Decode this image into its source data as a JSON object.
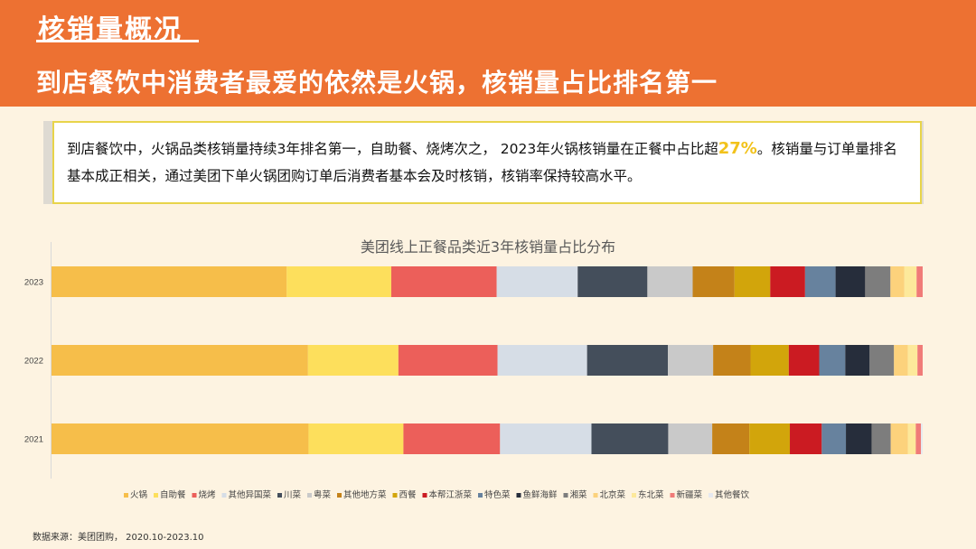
{
  "header": {
    "title": "核销量概况",
    "subtitle": "到店餐饮中消费者最爱的依然是火锅，核销量占比排名第一"
  },
  "callout": {
    "text_before": "到店餐饮中，火锅品类核销量持续3年排名第一，自助餐、烧烤次之， 2023年火锅核销量在正餐中占比超",
    "highlight": "27%",
    "text_after": "。核销量与订单量排名基本成正相关，通过美团下单火锅团购订单后消费者基本会及时核销，核销率保持较高水平。"
  },
  "source": "数据来源：美团团购， 2020.10-2023.10",
  "chart_data": {
    "type": "bar",
    "orientation": "horizontal",
    "stacked": "percent",
    "title": "美团线上正餐品类近3年核销量占比分布",
    "categories": [
      "2023",
      "2022",
      "2021"
    ],
    "legend_position": "bottom",
    "series": [
      {
        "name": "火锅",
        "color": "#f6be4a",
        "values": [
          27.0,
          29.5,
          29.8
        ]
      },
      {
        "name": "自助餐",
        "color": "#fddf5c",
        "values": [
          12.0,
          10.4,
          11.0
        ]
      },
      {
        "name": "烧烤",
        "color": "#ec5f5a",
        "values": [
          12.1,
          11.4,
          11.2
        ]
      },
      {
        "name": "其他异国菜",
        "color": "#d6dde6",
        "values": [
          9.3,
          10.3,
          10.6
        ]
      },
      {
        "name": "川菜",
        "color": "#444e5b",
        "values": [
          8.0,
          9.3,
          8.9
        ]
      },
      {
        "name": "粤菜",
        "color": "#c9c9c9",
        "values": [
          5.2,
          5.2,
          5.1
        ]
      },
      {
        "name": "其他地方菜",
        "color": "#c48219",
        "values": [
          4.8,
          4.3,
          4.3
        ]
      },
      {
        "name": "西餐",
        "color": "#d2a50b",
        "values": [
          4.1,
          4.4,
          4.7
        ]
      },
      {
        "name": "本帮江浙菜",
        "color": "#cb1b22",
        "values": [
          4.0,
          3.5,
          3.7
        ]
      },
      {
        "name": "特色菜",
        "color": "#67829e",
        "values": [
          3.5,
          3.0,
          2.8
        ]
      },
      {
        "name": "鱼鲜海鲜",
        "color": "#262d3b",
        "values": [
          3.4,
          2.8,
          3.0
        ]
      },
      {
        "name": "湘菜",
        "color": "#7d7d7d",
        "values": [
          2.9,
          2.8,
          2.2
        ]
      },
      {
        "name": "北京菜",
        "color": "#fcd27c",
        "values": [
          1.6,
          1.6,
          2.0
        ]
      },
      {
        "name": "东北菜",
        "color": "#fde99b",
        "values": [
          1.4,
          1.1,
          0.9
        ]
      },
      {
        "name": "新疆菜",
        "color": "#f07b78",
        "values": [
          0.7,
          0.6,
          0.6
        ]
      },
      {
        "name": "其他餐饮",
        "color": "#e6e9ef",
        "values": [
          0.0,
          0.0,
          0.2
        ]
      }
    ]
  }
}
